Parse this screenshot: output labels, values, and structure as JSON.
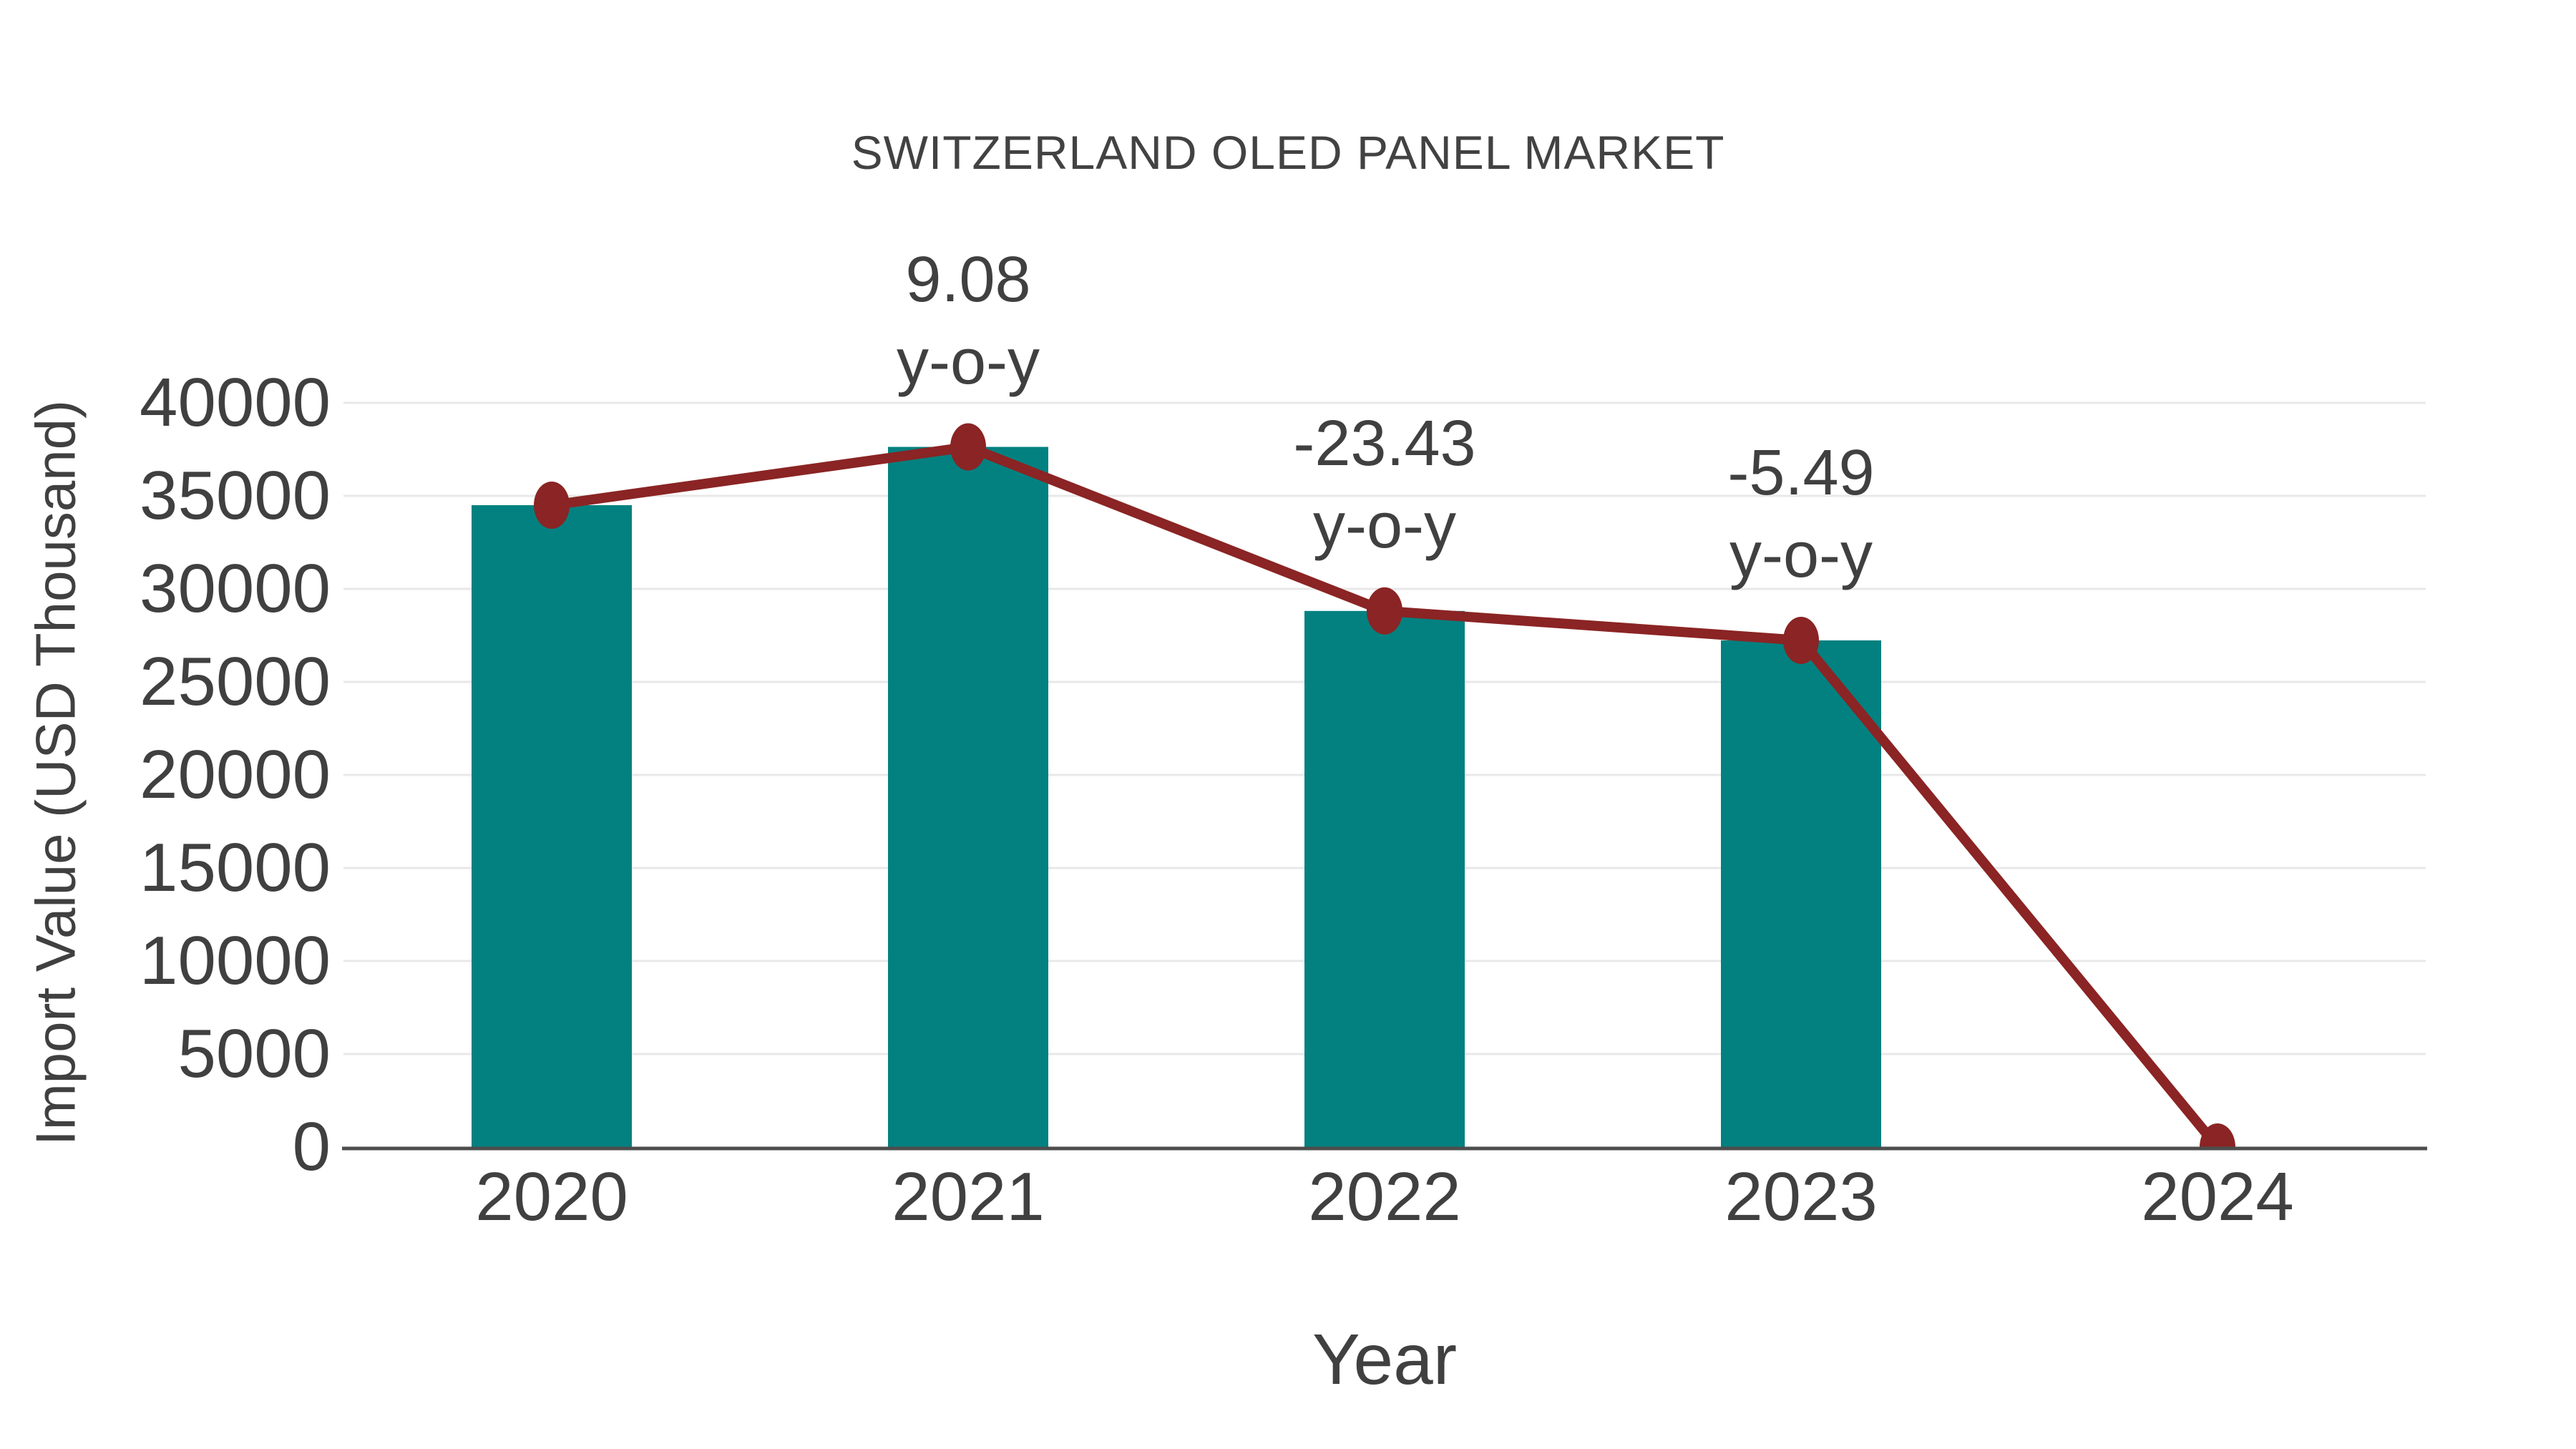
{
  "chart_data": {
    "type": "bar",
    "title": "SWITZERLAND OLED PANEL MARKET",
    "xlabel": "Year",
    "ylabel": "Import Value (USD Thousand)",
    "categories": [
      "2020",
      "2021",
      "2022",
      "2023",
      "2024"
    ],
    "series": [
      {
        "name": "Import Value bars",
        "type": "bar",
        "values": [
          34500,
          37633,
          28815,
          27233,
          null
        ]
      },
      {
        "name": "Import Value line",
        "type": "line",
        "values": [
          34500,
          37633,
          28815,
          27233,
          0
        ]
      }
    ],
    "ylim": [
      0,
      40000
    ],
    "yticks": [
      0,
      5000,
      10000,
      15000,
      20000,
      25000,
      30000,
      35000,
      40000
    ],
    "grid": "horizontal",
    "legend": "none",
    "annotations": [
      {
        "category": "2021",
        "value": "9.08",
        "label": "y-o-y"
      },
      {
        "category": "2022",
        "value": "-23.43",
        "label": "y-o-y"
      },
      {
        "category": "2023",
        "value": "-5.49",
        "label": "y-o-y"
      }
    ],
    "colors": {
      "bar": "#028180",
      "line": "#8b2424",
      "grid": "#e8e8e8",
      "axis": "#4d4d4d",
      "text": "#404040"
    }
  }
}
